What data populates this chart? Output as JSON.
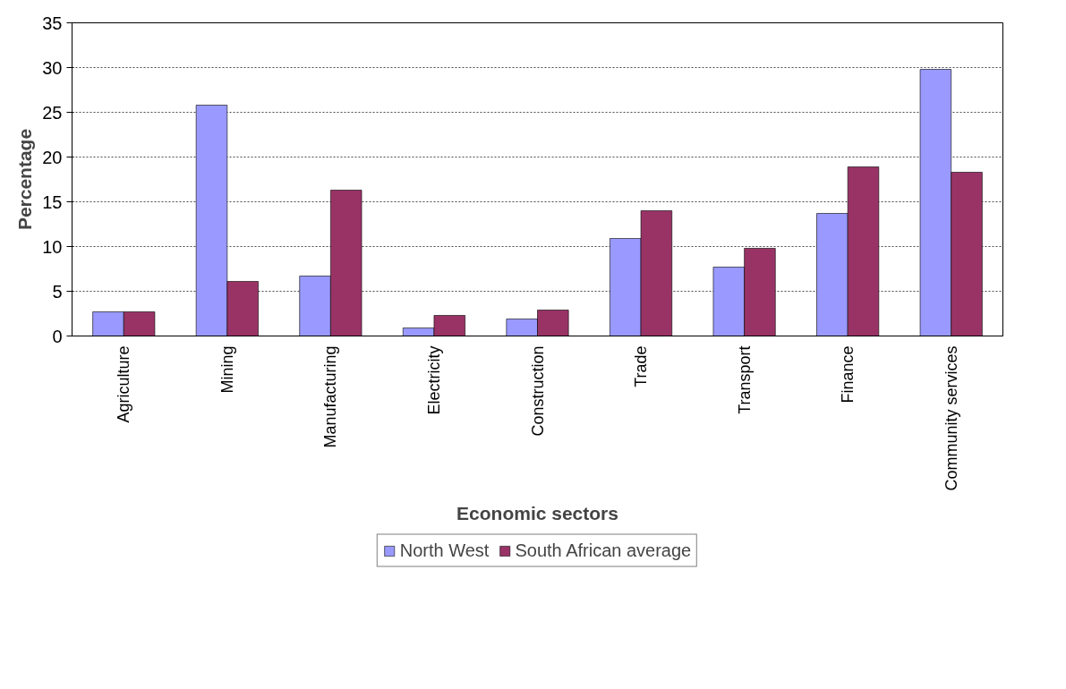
{
  "chart_data": {
    "type": "bar",
    "xlabel": "Economic sectors",
    "ylabel": "Percentage",
    "categories": [
      "Agriculture",
      "Mining",
      "Manufacturing",
      "Electricity",
      "Construction",
      "Trade",
      "Transport",
      "Finance",
      "Community services"
    ],
    "series": [
      {
        "name": "North West",
        "color": "#9999ff",
        "values": [
          2.7,
          25.8,
          6.7,
          0.9,
          1.9,
          10.9,
          7.7,
          13.7,
          29.8
        ]
      },
      {
        "name": "South African average",
        "color": "#993366",
        "values": [
          2.7,
          6.1,
          16.3,
          2.3,
          2.9,
          14,
          9.8,
          18.9,
          18.3
        ]
      }
    ],
    "ylim": [
      0,
      35
    ],
    "yticks": [
      0,
      5,
      10,
      15,
      20,
      25,
      30,
      35
    ],
    "grid": "y",
    "legend": "bottom"
  }
}
